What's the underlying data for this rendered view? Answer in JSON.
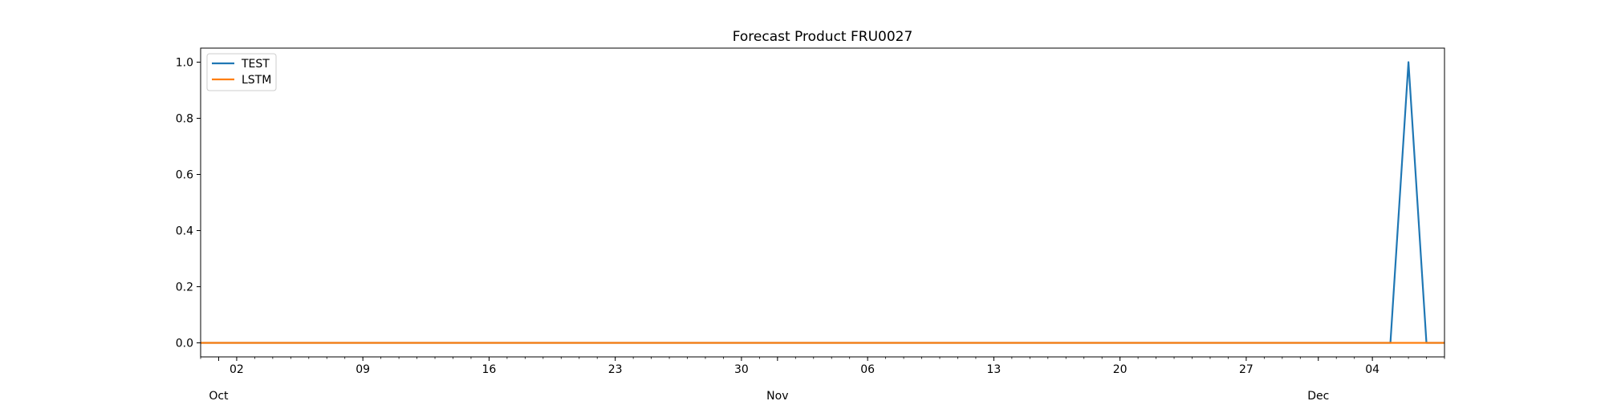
{
  "chart_data": {
    "type": "line",
    "title": "Forecast Product FRU0027",
    "xlabel": "",
    "ylabel": "",
    "x_range": [
      "2023-09-30",
      "2023-12-08"
    ],
    "ylim": [
      -0.05,
      1.05
    ],
    "y_ticks": [
      0.0,
      0.2,
      0.4,
      0.6,
      0.8,
      1.0
    ],
    "y_tick_labels": [
      "0.0",
      "0.2",
      "0.4",
      "0.6",
      "0.8",
      "1.0"
    ],
    "x_major_ticks": [
      {
        "date": "2023-10-02",
        "label": "02"
      },
      {
        "date": "2023-10-09",
        "label": "09"
      },
      {
        "date": "2023-10-16",
        "label": "16"
      },
      {
        "date": "2023-10-23",
        "label": "23"
      },
      {
        "date": "2023-10-30",
        "label": "30"
      },
      {
        "date": "2023-11-06",
        "label": "06"
      },
      {
        "date": "2023-11-13",
        "label": "13"
      },
      {
        "date": "2023-11-20",
        "label": "20"
      },
      {
        "date": "2023-11-27",
        "label": "27"
      },
      {
        "date": "2023-12-04",
        "label": "04"
      }
    ],
    "x_month_labels": [
      {
        "date": "2023-10-01",
        "label": "Oct"
      },
      {
        "date": "2023-11-01",
        "label": "Nov"
      },
      {
        "date": "2023-12-01",
        "label": "Dec"
      }
    ],
    "legend": {
      "position": "upper-left"
    },
    "grid": false,
    "series": [
      {
        "name": "TEST",
        "color": "#1f77b4",
        "points": [
          {
            "x": "2023-09-30",
            "y": 0
          },
          {
            "x": "2023-12-05",
            "y": 0
          },
          {
            "x": "2023-12-06",
            "y": 1
          },
          {
            "x": "2023-12-07",
            "y": 0
          },
          {
            "x": "2023-12-08",
            "y": 0
          }
        ]
      },
      {
        "name": "LSTM",
        "color": "#ff7f0e",
        "points": [
          {
            "x": "2023-09-30",
            "y": 0
          },
          {
            "x": "2023-12-08",
            "y": 0
          }
        ]
      }
    ]
  }
}
